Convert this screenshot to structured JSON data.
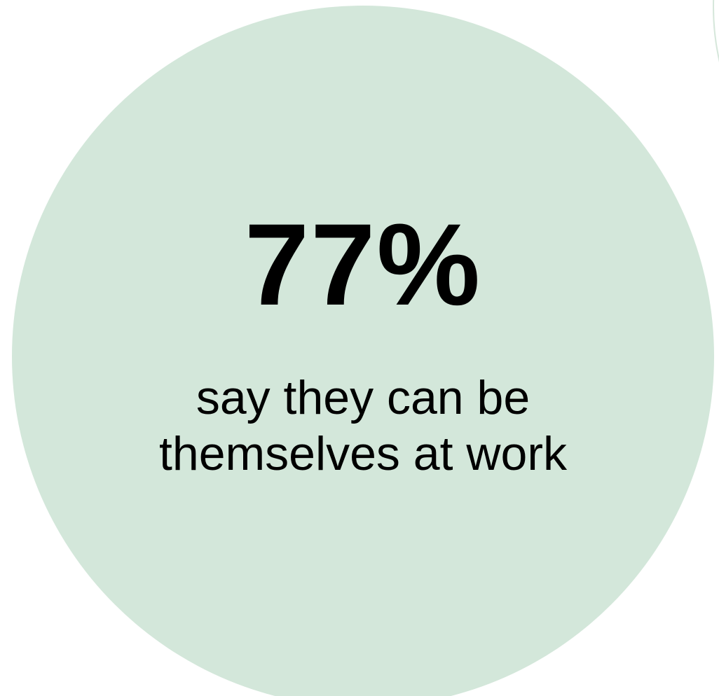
{
  "stat": {
    "value": "77%",
    "caption_lines": [
      "say they can be",
      "themselves at work"
    ],
    "circle_color": "#d3e7da",
    "text_color": "#000000"
  },
  "background_color": "#ffffff",
  "neighbor_circle_color": "#d6e7db"
}
